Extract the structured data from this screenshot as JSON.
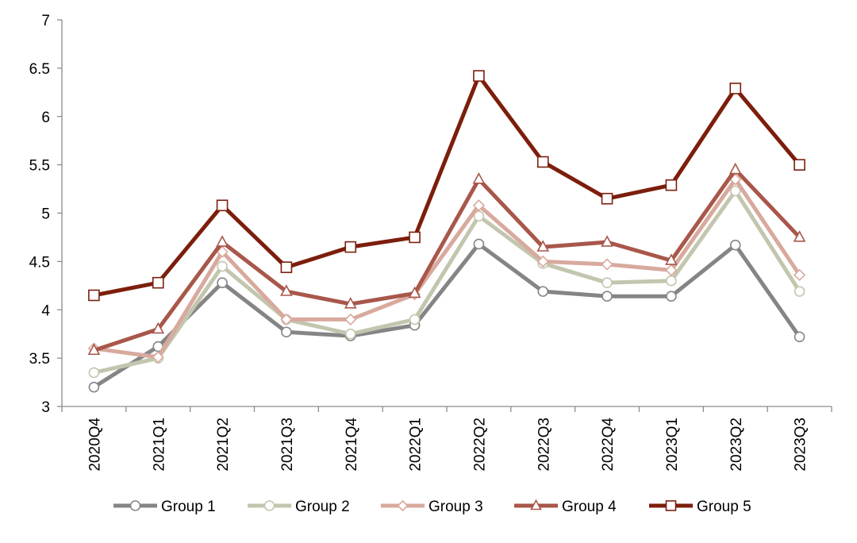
{
  "chart_data": {
    "type": "line",
    "title": "",
    "xlabel": "",
    "ylabel": "",
    "categories": [
      "2020Q4",
      "2021Q1",
      "2021Q2",
      "2021Q3",
      "2021Q4",
      "2022Q1",
      "2022Q2",
      "2022Q3",
      "2022Q4",
      "2023Q1",
      "2023Q2",
      "2023Q3"
    ],
    "ylim": [
      3,
      7
    ],
    "yticks": [
      "3",
      "3.5",
      "4",
      "4.5",
      "5",
      "5.5",
      "6",
      "6.5",
      "7"
    ],
    "grid": false,
    "legend_position": "bottom",
    "series": [
      {
        "name": "Group 1",
        "marker": "circle",
        "color": "#858585",
        "values": [
          3.2,
          3.62,
          4.28,
          3.77,
          3.73,
          3.84,
          4.68,
          4.19,
          4.14,
          4.14,
          4.67,
          3.72
        ]
      },
      {
        "name": "Group 2",
        "marker": "circle",
        "color": "#c3c6ae",
        "values": [
          3.35,
          3.5,
          4.45,
          3.9,
          3.75,
          3.9,
          4.97,
          4.48,
          4.28,
          4.3,
          5.23,
          4.19
        ]
      },
      {
        "name": "Group 3",
        "marker": "diamond",
        "color": "#d8a99d",
        "values": [
          3.6,
          3.51,
          4.6,
          3.9,
          3.9,
          4.16,
          5.08,
          4.5,
          4.47,
          4.41,
          5.35,
          4.36
        ]
      },
      {
        "name": "Group 4",
        "marker": "triangle",
        "color": "#a8574a",
        "values": [
          3.58,
          3.8,
          4.7,
          4.19,
          4.06,
          4.17,
          5.35,
          4.65,
          4.7,
          4.51,
          5.45,
          4.75
        ]
      },
      {
        "name": "Group 5",
        "marker": "square",
        "color": "#7c1e0c",
        "values": [
          4.15,
          4.28,
          5.08,
          4.44,
          4.65,
          4.75,
          6.42,
          5.53,
          5.15,
          5.29,
          6.29,
          5.5
        ]
      }
    ]
  }
}
